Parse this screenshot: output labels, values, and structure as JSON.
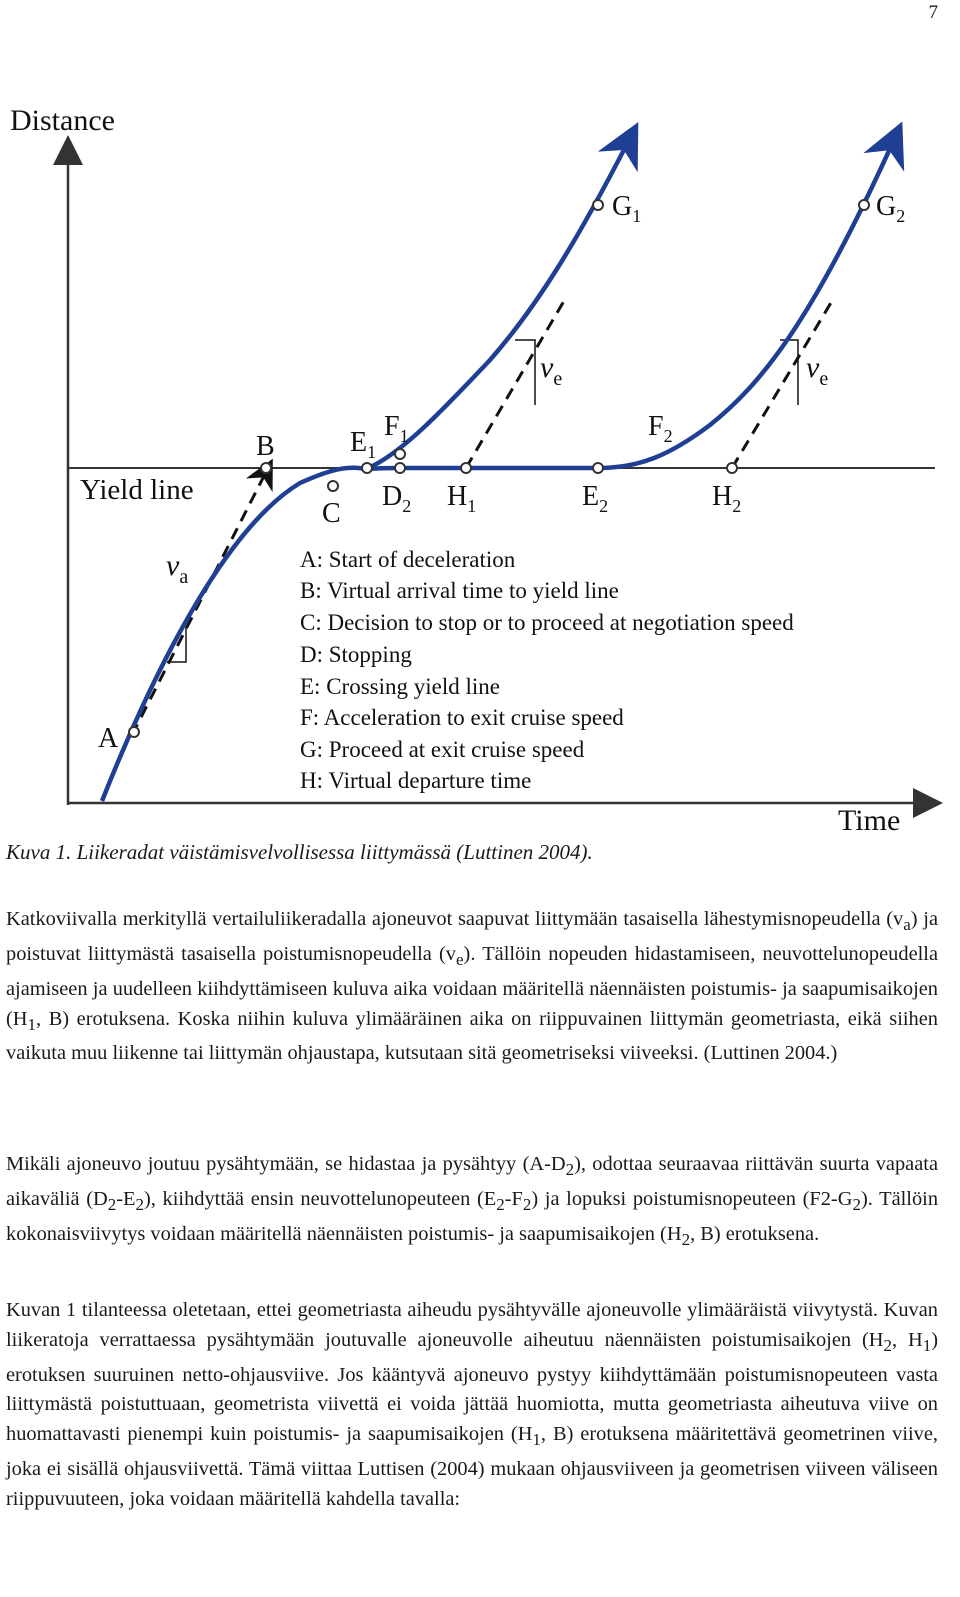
{
  "page_number": "7",
  "figure": {
    "axis_y": "Distance",
    "axis_x": "Time",
    "yield_line_label": "Yield line",
    "va": "v",
    "va_sub": "a",
    "ve": "v",
    "ve_sub": "e",
    "points": {
      "A": "A",
      "B": "B",
      "C": "C",
      "E1": "E",
      "E1_sub": "1",
      "F1": "F",
      "F1_sub": "1",
      "D2": "D",
      "D2_sub": "2",
      "H1": "H",
      "H1_sub": "1",
      "E2": "E",
      "E2_sub": "2",
      "H2": "H",
      "H2_sub": "2",
      "F2": "F",
      "F2_sub": "2",
      "G1": "G",
      "G1_sub": "1",
      "G2": "G",
      "G2_sub": "2"
    },
    "legend": [
      "A: Start of deceleration",
      "B: Virtual arrival time to yield line",
      "C: Decision to stop or to proceed at negotiation speed",
      "D: Stopping",
      "E: Crossing yield line",
      "F: Acceleration to exit cruise speed",
      "G: Proceed at exit cruise speed",
      "H: Virtual departure time"
    ],
    "colors": {
      "curve": "#1f3f94",
      "axes": "#333333"
    }
  },
  "caption": "Kuva 1. Liikeradat väistämisvelvollisessa liittymässä (Luttinen 2004).",
  "p1": {
    "t1": "Katkoviivalla merkityllä vertailuliikeradalla ajoneuvot saapuvat liittymään tasaisella lähestymisnopeudella (v",
    "s1": "a",
    "t2": ") ja poistuvat liittymästä tasaisella poistumisnopeudella (v",
    "s2": "e",
    "t3": "). Tällöin nopeuden hidastamiseen, neuvottelunopeudella ajamiseen ja uudelleen kiihdyttämiseen kuluva aika voidaan määritellä näennäisten poistumis- ja saapumisaikojen (H",
    "s3": "1",
    "t4": ", B) erotuksena. Koska niihin kuluva ylimääräinen aika on riippuvainen liittymän geometriasta, eikä siihen vaikuta muu liikenne tai liittymän ohjaustapa, kutsutaan sitä geometriseksi viiveeksi. (Luttinen 2004.)"
  },
  "p2": {
    "t1": "Mikäli ajoneuvo joutuu pysähtymään, se hidastaa ja pysähtyy (A-D",
    "s1": "2",
    "t2": "), odottaa seuraavaa riittävän suurta vapaata aikaväliä (D",
    "s2": "2",
    "t3": "-E",
    "s3": "2",
    "t4": "), kiihdyttää ensin neuvottelunopeuteen (E",
    "s4": "2",
    "t5": "-F",
    "s5": "2",
    "t6": ") ja lopuksi poistumisnopeuteen (F2-G",
    "s6": "2",
    "t7": "). Tällöin kokonaisviivytys voidaan määritellä näennäisten poistumis- ja saapumisaikojen (H",
    "s7": "2",
    "t8": ", B) erotuksena."
  },
  "p3": {
    "t1": "Kuvan 1 tilanteessa oletetaan, ettei geometriasta aiheudu pysähtyvälle ajoneuvolle ylimääräistä viivytystä. Kuvan liikeratoja verrattaessa pysähtymään joutuvalle ajoneuvolle aiheutuu näennäisten poistumisaikojen (H",
    "s1": "2",
    "t2": ", H",
    "s2": "1",
    "t3": ") erotuksen suuruinen netto-ohjausviive. Jos kääntyvä ajoneuvo pystyy kiihdyttämään poistumisnopeuteen vasta liittymästä poistuttuaan, geometrista viivettä ei voida jättää huomiotta, mutta geometriasta aiheutuva viive on huomattavasti pienempi kuin poistumis- ja saapumisaikojen (H",
    "s3": "1",
    "t4": ", B) erotuksena määritettävä geometrinen viive, joka ei sisällä ohjausviivettä. Tämä viittaa Luttisen (2004) mukaan ohjausviiveen ja geometrisen viiveen väliseen riippuvuuteen, joka voidaan määritellä kahdella tavalla:"
  }
}
